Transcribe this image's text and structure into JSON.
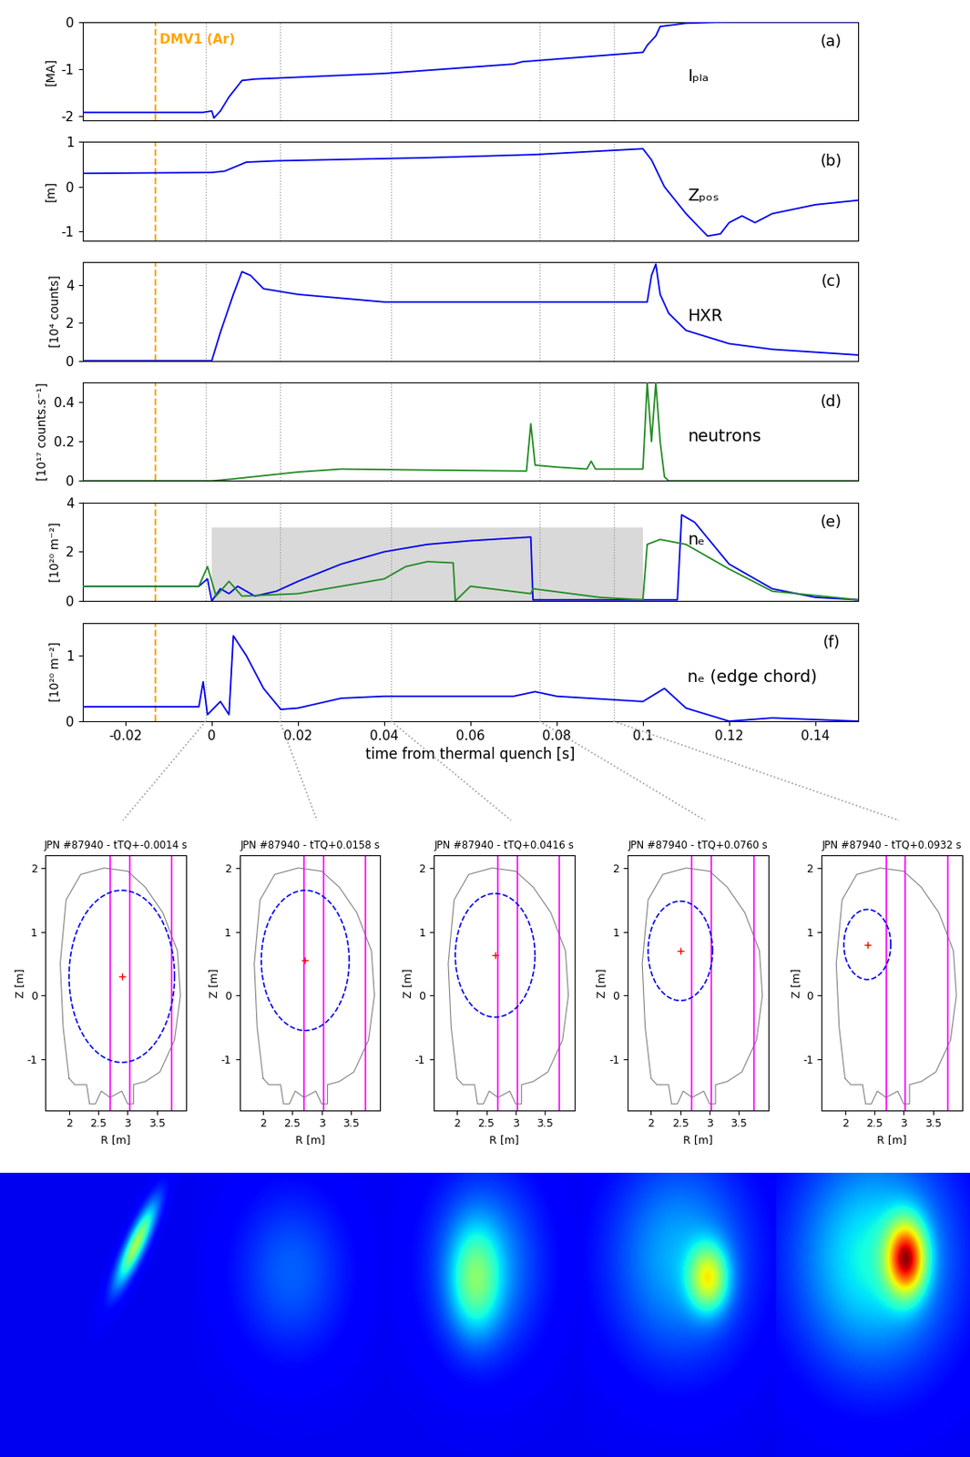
{
  "chart_data": {
    "type": "multi_panel",
    "xlabel": "time from thermal quench [s]",
    "injection": {
      "time": -0.013,
      "label": "DMV1 (Ar)",
      "color": "#ffa500",
      "line_style": "dashed"
    },
    "panels": [
      {
        "type": "line",
        "label": "(a)",
        "name": "Iₚₗₐ",
        "ylabel": "[MA]",
        "xlim": [
          -0.03,
          0.15
        ],
        "xticks": [
          -0.02,
          0,
          0.02,
          0.04,
          0.06,
          0.08,
          0.1,
          0.12,
          0.14
        ],
        "ylim": [
          -2.1,
          0
        ],
        "yticks": [
          -2,
          -1,
          0
        ],
        "tick_labels": "y",
        "series": [
          {
            "color": "#0000ee",
            "x": [
              -0.03,
              -0.002,
              0,
              0.0005,
              0.002,
              0.004,
              0.007,
              0.01,
              0.04,
              0.07,
              0.072,
              0.1,
              0.101,
              0.103,
              0.104,
              0.11,
              0.12,
              0.15
            ],
            "values": [
              -1.93,
              -1.93,
              -1.9,
              -2.05,
              -1.9,
              -1.6,
              -1.25,
              -1.22,
              -1.1,
              -0.9,
              -0.85,
              -0.65,
              -0.5,
              -0.3,
              -0.1,
              -0.03,
              0,
              0
            ]
          }
        ]
      },
      {
        "type": "line",
        "label": "(b)",
        "name": "Zₚₒₛ",
        "ylabel": "[m]",
        "xlim": [
          -0.03,
          0.15
        ],
        "xticks": [
          -0.02,
          0,
          0.02,
          0.04,
          0.06,
          0.08,
          0.1,
          0.12,
          0.14
        ],
        "ylim": [
          -1.2,
          1
        ],
        "yticks": [
          -1,
          0,
          1
        ],
        "tick_labels": "y",
        "series": [
          {
            "color": "#0000ee",
            "x": [
              -0.03,
              0,
              0.003,
              0.008,
              0.015,
              0.05,
              0.075,
              0.1,
              0.102,
              0.105,
              0.11,
              0.115,
              0.118,
              0.12,
              0.123,
              0.126,
              0.13,
              0.14,
              0.15
            ],
            "values": [
              0.3,
              0.32,
              0.35,
              0.55,
              0.58,
              0.65,
              0.72,
              0.85,
              0.6,
              0,
              -0.6,
              -1.1,
              -1.05,
              -0.8,
              -0.65,
              -0.8,
              -0.6,
              -0.4,
              -0.3
            ]
          }
        ]
      },
      {
        "type": "line",
        "label": "(c)",
        "name": "HXR",
        "ylabel": "[10⁴ counts]",
        "xlim": [
          -0.03,
          0.15
        ],
        "xticks": [
          -0.02,
          0,
          0.02,
          0.04,
          0.06,
          0.08,
          0.1,
          0.12,
          0.14
        ],
        "ylim": [
          0,
          5.2
        ],
        "yticks": [
          0,
          2,
          4
        ],
        "tick_labels": "y",
        "series": [
          {
            "color": "#0000ee",
            "x": [
              -0.03,
              0,
              0.002,
              0.005,
              0.007,
              0.009,
              0.012,
              0.02,
              0.04,
              0.1,
              0.101,
              0.102,
              0.103,
              0.104,
              0.106,
              0.11,
              0.12,
              0.13,
              0.15
            ],
            "values": [
              0,
              0,
              1.5,
              3.5,
              4.7,
              4.5,
              3.8,
              3.5,
              3.1,
              3.1,
              3.1,
              4.5,
              5.1,
              3.5,
              2.5,
              1.6,
              0.9,
              0.6,
              0.3
            ]
          }
        ]
      },
      {
        "type": "line",
        "label": "(d)",
        "name": "neutrons",
        "ylabel": "[10¹⁷ counts.s⁻¹]",
        "xlim": [
          -0.03,
          0.15
        ],
        "xticks": [
          -0.02,
          0,
          0.02,
          0.04,
          0.06,
          0.08,
          0.1,
          0.12,
          0.14
        ],
        "ylim": [
          0,
          0.5
        ],
        "yticks": [
          0,
          0.2,
          0.4
        ],
        "tick_labels": "y",
        "series": [
          {
            "color": "#228b22",
            "x": [
              -0.03,
              0,
              0.005,
              0.02,
              0.03,
              0.05,
              0.073,
              0.074,
              0.075,
              0.08,
              0.087,
              0.088,
              0.089,
              0.1,
              0.101,
              0.102,
              0.103,
              0.104,
              0.105,
              0.106,
              0.15
            ],
            "values": [
              0,
              0,
              0.01,
              0.045,
              0.06,
              0.055,
              0.05,
              0.29,
              0.08,
              0.07,
              0.06,
              0.1,
              0.06,
              0.06,
              0.5,
              0.2,
              0.5,
              0.2,
              0.02,
              0,
              0
            ]
          }
        ]
      },
      {
        "type": "line",
        "label": "(e)",
        "name": "nₑ",
        "ylabel": "[10²⁰ m⁻²]",
        "xlim": [
          -0.03,
          0.15
        ],
        "xticks": [
          -0.02,
          0,
          0.02,
          0.04,
          0.06,
          0.08,
          0.1,
          0.12,
          0.14
        ],
        "ylim": [
          0,
          4
        ],
        "yticks": [
          0,
          2,
          4
        ],
        "tick_labels": "y",
        "shaded_region": {
          "x": [
            0,
            0.1
          ],
          "y": [
            0,
            3
          ],
          "color": "#d9d9d9"
        },
        "series": [
          {
            "color": "#0000ee",
            "x": [
              -0.03,
              -0.003,
              -0.001,
              0,
              0.002,
              0.004,
              0.006,
              0.01,
              0.015,
              0.02,
              0.03,
              0.04,
              0.05,
              0.06,
              0.074,
              0.0745,
              0.108,
              0.109,
              0.112,
              0.12,
              0.13,
              0.14,
              0.15
            ],
            "values": [
              0.6,
              0.6,
              0.9,
              0,
              0.5,
              0.3,
              0.6,
              0.2,
              0.4,
              0.8,
              1.5,
              2,
              2.3,
              2.45,
              2.6,
              0.05,
              0.05,
              3.5,
              3.2,
              1.5,
              0.5,
              0.15,
              0.05
            ]
          },
          {
            "color": "#228b22",
            "x": [
              -0.03,
              -0.003,
              -0.001,
              0.001,
              0.004,
              0.007,
              0.02,
              0.03,
              0.04,
              0.045,
              0.05,
              0.056,
              0.0565,
              0.06,
              0.074,
              0.0745,
              0.09,
              0.1,
              0.101,
              0.104,
              0.11,
              0.12,
              0.13,
              0.15
            ],
            "values": [
              0.6,
              0.6,
              1.4,
              0.2,
              0.8,
              0.2,
              0.3,
              0.6,
              0.9,
              1.4,
              1.6,
              1.55,
              0,
              0.6,
              0.3,
              0.5,
              0.15,
              0.05,
              2.3,
              2.5,
              2.3,
              1.3,
              0.4,
              0.05
            ]
          }
        ]
      },
      {
        "type": "line",
        "label": "(f)",
        "name": "nₑ (edge chord)",
        "ylabel": "[10²⁰ m⁻²]",
        "xlim": [
          -0.03,
          0.15
        ],
        "xticks": [
          -0.02,
          0,
          0.02,
          0.04,
          0.06,
          0.08,
          0.1,
          0.12,
          0.14
        ],
        "ylim": [
          0,
          1.5
        ],
        "yticks": [
          0,
          1
        ],
        "tick_labels": true,
        "series": [
          {
            "color": "#0000ee",
            "x": [
              -0.03,
              -0.003,
              -0.002,
              -0.001,
              0.002,
              0.004,
              0.005,
              0.008,
              0.012,
              0.016,
              0.02,
              0.03,
              0.04,
              0.07,
              0.075,
              0.08,
              0.1,
              0.105,
              0.11,
              0.12,
              0.13,
              0.15
            ],
            "values": [
              0.22,
              0.22,
              0.6,
              0.1,
              0.3,
              0.1,
              1.3,
              1.0,
              0.5,
              0.18,
              0.2,
              0.35,
              0.38,
              0.38,
              0.45,
              0.38,
              0.3,
              0.5,
              0.2,
              0,
              0.05,
              0
            ]
          }
        ]
      }
    ],
    "geometry": {
      "wall": {
        "R": [
          2.0,
          1.9,
          1.85,
          1.95,
          2.2,
          2.6,
          3.0,
          3.3,
          3.6,
          3.85,
          3.9,
          3.8,
          3.55,
          3.3,
          3.1,
          3.1,
          3.0,
          2.9,
          2.7,
          2.55,
          2.45,
          2.35,
          2.3,
          2.1,
          2.0
        ],
        "Z": [
          -1.3,
          -0.5,
          0.5,
          1.5,
          1.9,
          2.0,
          1.95,
          1.7,
          1.3,
          0.7,
          0,
          -0.7,
          -1.2,
          -1.35,
          -1.4,
          -1.7,
          -1.7,
          -1.5,
          -1.6,
          -1.5,
          -1.7,
          -1.7,
          -1.4,
          -1.4,
          -1.3
        ],
        "color": "#808080"
      },
      "chords_R": [
        2.7,
        3.03,
        3.75
      ],
      "chord_color": "#ff00ff"
    },
    "cross_sections": [
      {
        "type": "line",
        "title": "JPN #87940 - tTQ+-0.0014 s",
        "time": -0.0014,
        "plasma": {
          "center": [
            2.9,
            0.3
          ],
          "radius_R": 0.9,
          "radius_Z": 1.35
        }
      },
      {
        "type": "line",
        "title": "JPN #87940 - tTQ+0.0158 s",
        "time": 0.0158,
        "plasma": {
          "center": [
            2.72,
            0.55
          ],
          "radius_R": 0.75,
          "radius_Z": 1.1
        }
      },
      {
        "type": "line",
        "title": "JPN #87940 - tTQ+0.0416 s",
        "time": 0.0416,
        "plasma": {
          "center": [
            2.65,
            0.63
          ],
          "radius_R": 0.68,
          "radius_Z": 0.97
        }
      },
      {
        "type": "line",
        "title": "JPN #87940 - tTQ+0.0760 s",
        "time": 0.076,
        "plasma": {
          "center": [
            2.5,
            0.7
          ],
          "radius_R": 0.55,
          "radius_Z": 0.78
        }
      },
      {
        "type": "line",
        "title": "JPN #87940 - tTQ+0.0932 s",
        "time": 0.0932,
        "plasma": {
          "center": [
            2.38,
            0.8
          ],
          "radius_R": 0.4,
          "radius_Z": 0.55
        }
      }
    ],
    "cross_section_axes": {
      "xlabel": "R [m]",
      "ylabel": "Z [m]",
      "xlim": [
        1.6,
        4.0
      ],
      "xticks": [
        2,
        2.5,
        3,
        3.5
      ],
      "ylim": [
        -1.8,
        2.2
      ],
      "yticks": [
        -1,
        0,
        1,
        2
      ]
    }
  }
}
